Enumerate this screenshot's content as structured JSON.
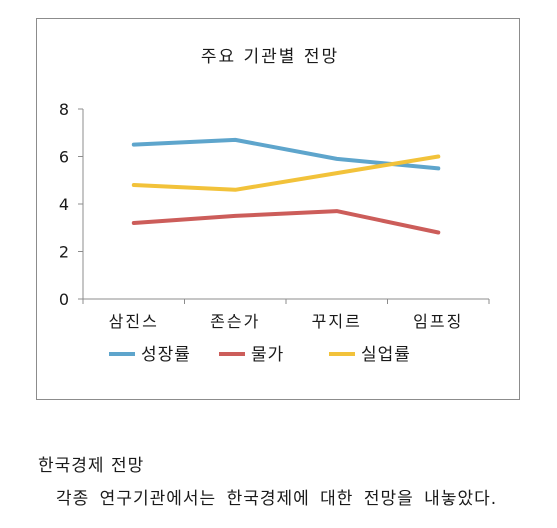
{
  "chart_data": {
    "type": "line",
    "title": "주요 기관별 전망",
    "categories": [
      "삼진스",
      "존슨가",
      "꾸지르",
      "임프징"
    ],
    "ylim": [
      0,
      8
    ],
    "yticks": [
      "0",
      "2",
      "4",
      "6",
      "8"
    ],
    "legend_position": "bottom",
    "grid": false,
    "series": [
      {
        "name": "성장률",
        "values": [
          6.5,
          6.7,
          5.9,
          5.5
        ],
        "color": "#5ea5cc"
      },
      {
        "name": "물가",
        "values": [
          3.2,
          3.5,
          3.7,
          2.8
        ],
        "color": "#cc5d5a"
      },
      {
        "name": "실업률",
        "values": [
          4.8,
          4.6,
          5.3,
          6.0
        ],
        "color": "#f2c23a"
      }
    ]
  },
  "text": {
    "heading": "한국경제 전망",
    "paragraph": "각종 연구기관에서는 한국경제에 대한 전망을 내놓았다."
  }
}
